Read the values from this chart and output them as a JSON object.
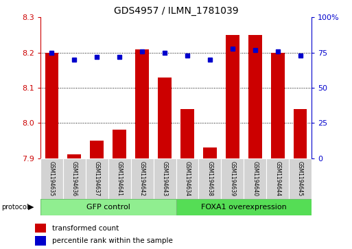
{
  "title": "GDS4957 / ILMN_1781039",
  "samples": [
    "GSM1194635",
    "GSM1194636",
    "GSM1194637",
    "GSM1194641",
    "GSM1194642",
    "GSM1194643",
    "GSM1194634",
    "GSM1194638",
    "GSM1194639",
    "GSM1194640",
    "GSM1194644",
    "GSM1194645"
  ],
  "red_values": [
    8.2,
    7.91,
    7.95,
    7.98,
    8.21,
    8.13,
    8.04,
    7.93,
    8.25,
    8.25,
    8.2,
    8.04
  ],
  "blue_values": [
    75,
    70,
    72,
    72,
    76,
    75,
    73,
    70,
    78,
    77,
    76,
    73
  ],
  "ylim_left": [
    7.9,
    8.3
  ],
  "ylim_right": [
    0,
    100
  ],
  "yticks_left": [
    7.9,
    8.0,
    8.1,
    8.2,
    8.3
  ],
  "yticks_right": [
    0,
    25,
    50,
    75,
    100
  ],
  "groups": [
    {
      "label": "GFP control",
      "start": 0,
      "end": 6,
      "color": "#90ee90"
    },
    {
      "label": "FOXA1 overexpression",
      "start": 6,
      "end": 12,
      "color": "#55dd55"
    }
  ],
  "bar_color": "#cc0000",
  "dot_color": "#0000cc",
  "bg_color": "#ffffff",
  "sample_bg": "#d3d3d3",
  "grid_color": "#000000",
  "dotted_lines": [
    8.0,
    8.1,
    8.2
  ],
  "legend_labels": [
    "transformed count",
    "percentile rank within the sample"
  ],
  "protocol_label": "protocol"
}
